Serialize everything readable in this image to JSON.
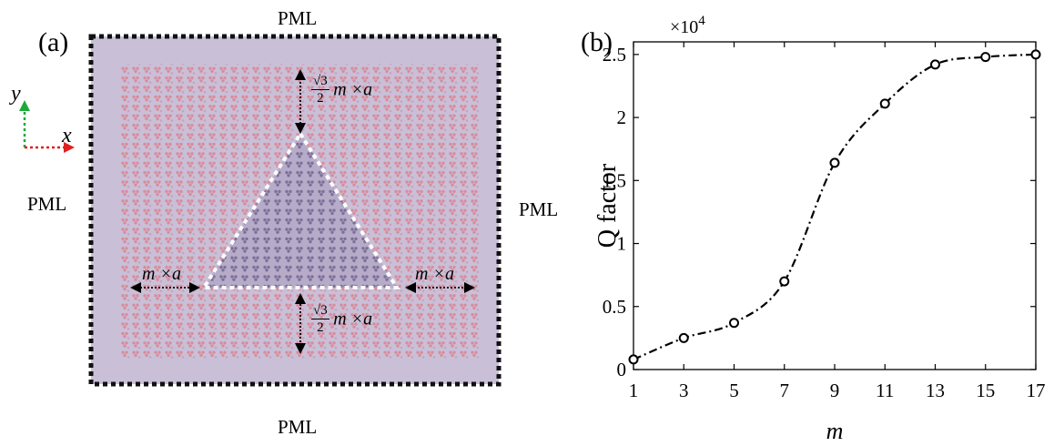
{
  "figure": {
    "panel_a_label": "(a)",
    "panel_b_label": "(b)"
  },
  "panel_a": {
    "pml_top": "PML",
    "pml_bottom": "PML",
    "pml_left": "PML",
    "pml_right": "PML",
    "axis_y": "y",
    "axis_x": "x",
    "dim_top_fraction_num": "√3",
    "dim_top_fraction_den": "2",
    "dim_top_rest": "m ×a",
    "dim_bottom_fraction_num": "√3",
    "dim_bottom_fraction_den": "2",
    "dim_bottom_rest": "m ×a",
    "dim_left": "m ×a",
    "dim_right": "m ×a",
    "colors": {
      "background": "#c9c0d8",
      "hole_pink": "#d98b9a",
      "boundary": "#111111",
      "triangle_outline": "#ffffff",
      "axis_y_arrow": "#1aaa3a",
      "axis_x_arrow": "#e02020"
    }
  },
  "chart_data": {
    "type": "line",
    "x": [
      1,
      3,
      5,
      7,
      9,
      11,
      13,
      15,
      17
    ],
    "series": [
      {
        "values": [
          800,
          2500,
          3700,
          7000,
          16400,
          21100,
          24200,
          24800,
          25000
        ]
      }
    ],
    "xlabel": "m",
    "ylabel": "Q factor",
    "exponent_label": "×10",
    "exponent_power": "4",
    "xlim": [
      1,
      17
    ],
    "ylim": [
      0,
      26000
    ],
    "x_ticks": [
      "1",
      "3",
      "5",
      "7",
      "9",
      "11",
      "13",
      "15",
      "17"
    ],
    "y_tick_values": [
      0,
      5000,
      10000,
      15000,
      20000,
      25000
    ],
    "y_ticks": [
      "0",
      "0.5",
      "1",
      "1.5",
      "2",
      "2.5"
    ],
    "line_style": "dash-dot",
    "marker": "open-circle",
    "grid": false,
    "color": "#000000"
  }
}
